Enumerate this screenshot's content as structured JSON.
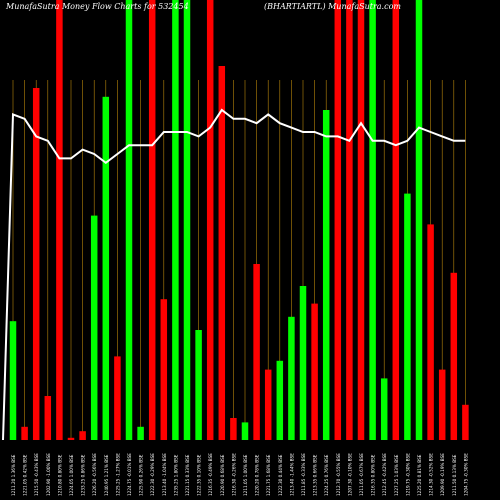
{
  "header": {
    "title_left": "MunafaSutra  Money Flow  Charts for 532454",
    "title_right": "(BHARTIARTL)  MunafaSutra.com"
  },
  "colors": {
    "background": "#000000",
    "up": "#00ff00",
    "down": "#ff0000",
    "grid": "#b8860b",
    "line": "#ffffff"
  },
  "chart_data": {
    "type": "bar",
    "grid": "vertical",
    "categories": [
      "1211.20 1.36% BSE",
      "1221.05 0.42% BSE",
      "1215.50 -0.43% BSE",
      "1202.90 -1.00% BSE",
      "1210.80 0.80% BSE",
      "1224.05 1.00% BSE",
      "1233.25 0.86% BSE",
      "1226.20 -0.56% BSE",
      "1240.95 1.21% BSE",
      "1225.25 -1.27% BSE",
      "1224.75 -0.01% BSE",
      "1225.90 0.26% BSE",
      "1222.30 -0.29% BSE",
      "1213.40 -1.04% BSE",
      "1235.25 1.80% BSE",
      "1221.15 0.33% BSE",
      "1222.35 0.10% BSE",
      "1216.35 -0.49% BSE",
      "1220.90 0.68% BSE",
      "1216.30 -0.26% BSE",
      "1211.05 1.00% BSE",
      "1220.20 0.78% BSE",
      "1221.75 1.68% BSE",
      "1222.30 0.44% BSE",
      "1213.40 -1.44% BSE",
      "1211.85 -0.33% BSE",
      "1213.35 0.66% BSE",
      "1224.25 0.76% BSE",
      "1212.70 -0.55% BSE",
      "1207.30 -0.10% BSE",
      "1211.05 -0.67% BSE",
      "1216.35 0.80% BSE",
      "1212.45 -0.42% BSE",
      "1227.25 1.03% BSE",
      "1219.75 -0.30% BSE",
      "1225.20 0.81% BSE",
      "1214.30 -0.52% BSE",
      "1209.90 -0.19% BSE",
      "1211.50 0.13% BSE",
      "1204.75 -0.30% BSE"
    ],
    "colors": [
      "up",
      "down",
      "down",
      "down",
      "down",
      "down",
      "down",
      "up",
      "up",
      "down",
      "up",
      "up",
      "down",
      "down",
      "up",
      "up",
      "up",
      "down",
      "down",
      "down",
      "up",
      "down",
      "down",
      "up",
      "up",
      "up",
      "down",
      "up",
      "down",
      "down",
      "down",
      "up",
      "up",
      "down",
      "up",
      "up",
      "down",
      "down",
      "down",
      "down"
    ],
    "values": [
      27,
      3,
      80,
      10,
      100,
      0.5,
      2,
      51,
      78,
      19,
      100,
      3,
      100,
      32,
      100,
      100,
      25,
      100,
      85,
      5,
      4,
      40,
      16,
      18,
      28,
      35,
      31,
      75,
      100,
      100,
      100,
      100,
      14,
      100,
      56,
      100,
      49,
      16,
      38,
      8
    ],
    "line": [
      74,
      73,
      69,
      68,
      64,
      64,
      66,
      65,
      63,
      65,
      67,
      67,
      67,
      70,
      70,
      70,
      69,
      71,
      75,
      73,
      73,
      72,
      74,
      72,
      71,
      70,
      70,
      69,
      69,
      68,
      72,
      68,
      68,
      67,
      68,
      71,
      70,
      69,
      68,
      68
    ],
    "ylim": [
      0,
      100
    ]
  }
}
